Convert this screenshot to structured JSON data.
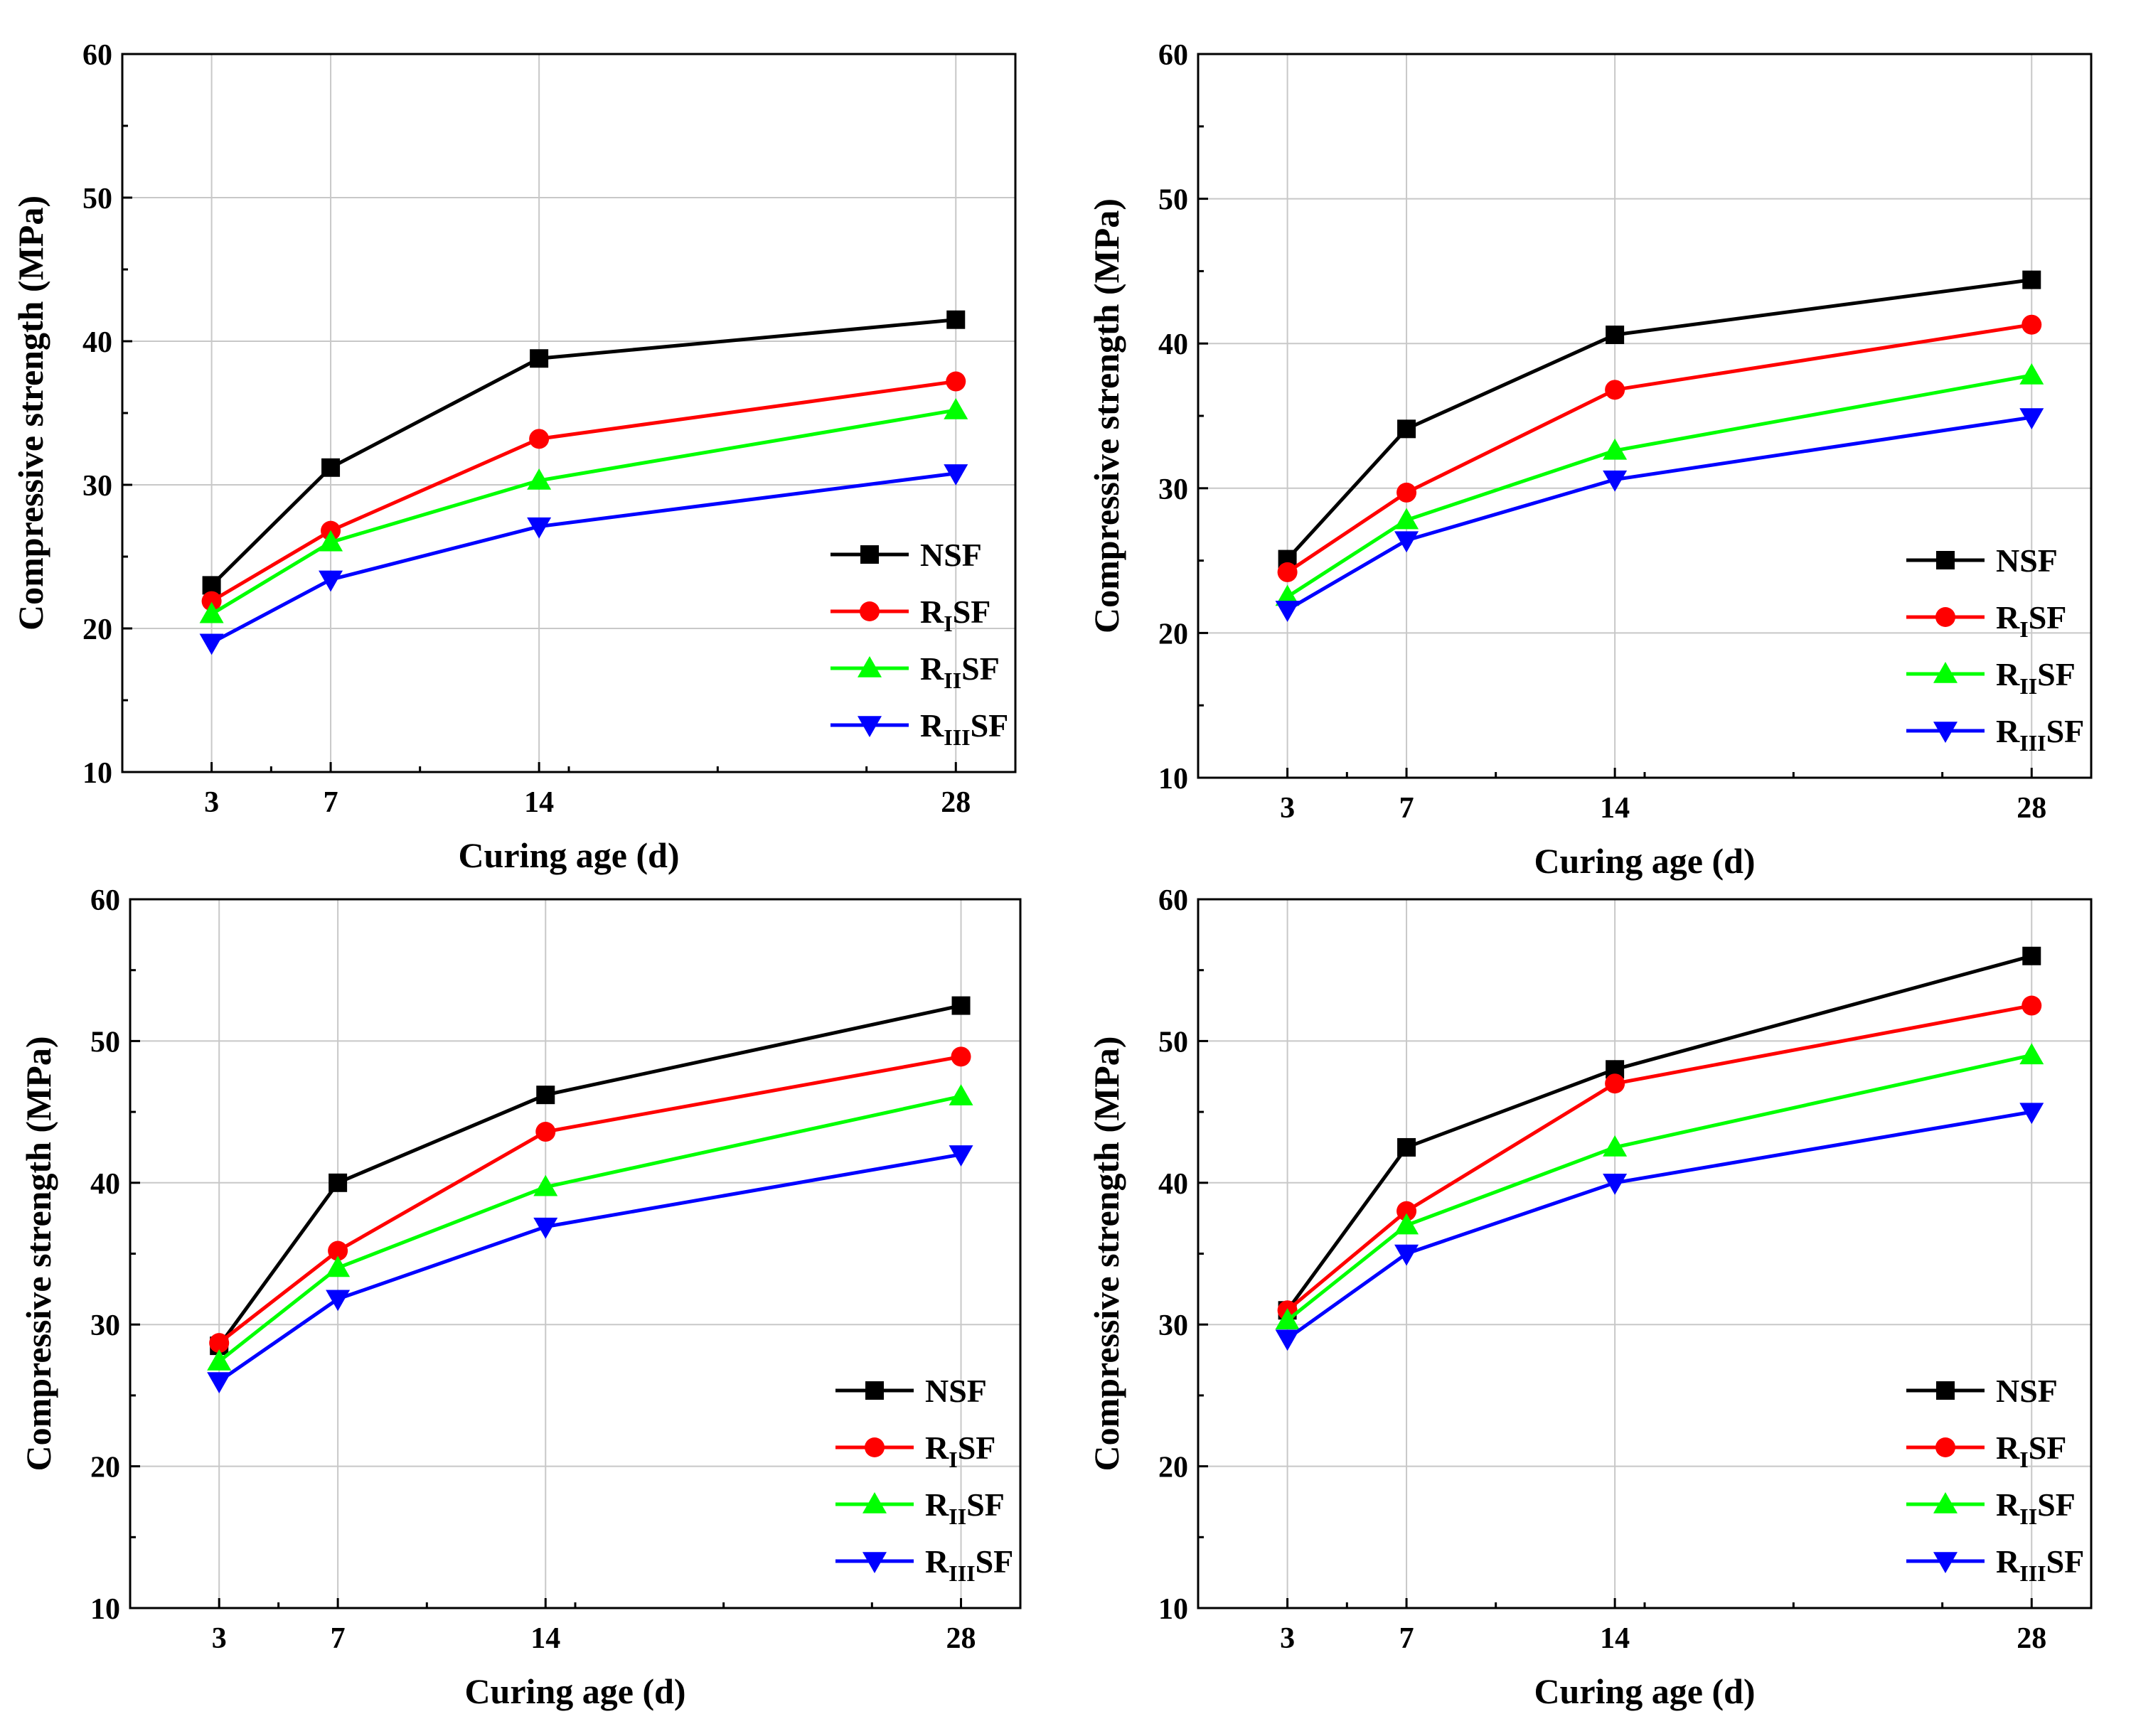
{
  "chart_data": [
    {
      "type": "line",
      "xlabel": "Curing age (d)",
      "ylabel": "Compressive strength (MPa)",
      "x": [
        3,
        7,
        14,
        28
      ],
      "xticks": [
        "3",
        "7",
        "14",
        "28"
      ],
      "xlim": [
        0,
        30
      ],
      "ylim": [
        10,
        60
      ],
      "yticks": [
        "10",
        "20",
        "30",
        "40",
        "50",
        "60"
      ],
      "grid": true,
      "legend": "bottom-right",
      "series": [
        {
          "name": "NSF",
          "prefix": "NSF",
          "sub": "",
          "suffix": "",
          "marker": "square",
          "color": "#000000",
          "values": [
            23.0,
            31.2,
            38.8,
            41.5
          ]
        },
        {
          "name": "RISF",
          "prefix": "R",
          "sub": "I",
          "suffix": "SF",
          "marker": "circle",
          "color": "#ff0000",
          "values": [
            21.9,
            26.8,
            33.2,
            37.2
          ]
        },
        {
          "name": "RIISF",
          "prefix": "R",
          "sub": "II",
          "suffix": "SF",
          "marker": "triangle-up",
          "color": "#00ff00",
          "values": [
            21.0,
            26.0,
            30.3,
            35.2
          ]
        },
        {
          "name": "RIIISF",
          "prefix": "R",
          "sub": "III",
          "suffix": "SF",
          "marker": "triangle-down",
          "color": "#0000ff",
          "values": [
            19.0,
            23.4,
            27.1,
            30.8
          ]
        }
      ]
    },
    {
      "type": "line",
      "xlabel": "Curing age (d)",
      "ylabel": "Compressive strength (MPa)",
      "x": [
        3,
        7,
        14,
        28
      ],
      "xticks": [
        "3",
        "7",
        "14",
        "28"
      ],
      "xlim": [
        0,
        30
      ],
      "ylim": [
        10,
        60
      ],
      "yticks": [
        "10",
        "20",
        "30",
        "40",
        "50",
        "60"
      ],
      "grid": true,
      "legend": "bottom-right",
      "series": [
        {
          "name": "NSF",
          "prefix": "NSF",
          "sub": "",
          "suffix": "",
          "marker": "square",
          "color": "#000000",
          "values": [
            25.1,
            34.1,
            40.6,
            44.4
          ]
        },
        {
          "name": "RISF",
          "prefix": "R",
          "sub": "I",
          "suffix": "SF",
          "marker": "circle",
          "color": "#ff0000",
          "values": [
            24.2,
            29.7,
            36.8,
            41.3
          ]
        },
        {
          "name": "RIISF",
          "prefix": "R",
          "sub": "II",
          "suffix": "SF",
          "marker": "triangle-up",
          "color": "#00ff00",
          "values": [
            22.5,
            27.8,
            32.6,
            37.8
          ]
        },
        {
          "name": "RIIISF",
          "prefix": "R",
          "sub": "III",
          "suffix": "SF",
          "marker": "triangle-down",
          "color": "#0000ff",
          "values": [
            21.6,
            26.4,
            30.6,
            34.9
          ]
        }
      ]
    },
    {
      "type": "line",
      "xlabel": "Curing age (d)",
      "ylabel": "Compressive strength (MPa)",
      "x": [
        3,
        7,
        14,
        28
      ],
      "xticks": [
        "3",
        "7",
        "14",
        "28"
      ],
      "xlim": [
        0,
        30
      ],
      "ylim": [
        10,
        60
      ],
      "yticks": [
        "10",
        "20",
        "30",
        "40",
        "50",
        "60"
      ],
      "grid": true,
      "legend": "bottom-right",
      "series": [
        {
          "name": "NSF",
          "prefix": "NSF",
          "sub": "",
          "suffix": "",
          "marker": "square",
          "color": "#000000",
          "values": [
            28.5,
            40.0,
            46.2,
            52.5
          ]
        },
        {
          "name": "RISF",
          "prefix": "R",
          "sub": "I",
          "suffix": "SF",
          "marker": "circle",
          "color": "#ff0000",
          "values": [
            28.7,
            35.2,
            43.6,
            48.9
          ]
        },
        {
          "name": "RIISF",
          "prefix": "R",
          "sub": "II",
          "suffix": "SF",
          "marker": "triangle-up",
          "color": "#00ff00",
          "values": [
            27.4,
            34.0,
            39.7,
            46.1
          ]
        },
        {
          "name": "RIIISF",
          "prefix": "R",
          "sub": "III",
          "suffix": "SF",
          "marker": "triangle-down",
          "color": "#0000ff",
          "values": [
            26.0,
            31.8,
            36.9,
            42.0
          ]
        }
      ]
    },
    {
      "type": "line",
      "xlabel": "Curing age (d)",
      "ylabel": "Compressive strength (MPa)",
      "x": [
        3,
        7,
        14,
        28
      ],
      "xticks": [
        "3",
        "7",
        "14",
        "28"
      ],
      "xlim": [
        0,
        30
      ],
      "ylim": [
        10,
        60
      ],
      "yticks": [
        "10",
        "20",
        "30",
        "40",
        "50",
        "60"
      ],
      "grid": true,
      "legend": "bottom-right",
      "series": [
        {
          "name": "NSF",
          "prefix": "NSF",
          "sub": "",
          "suffix": "",
          "marker": "square",
          "color": "#000000",
          "values": [
            31.0,
            42.5,
            48.0,
            56.0
          ]
        },
        {
          "name": "RISF",
          "prefix": "R",
          "sub": "I",
          "suffix": "SF",
          "marker": "circle",
          "color": "#ff0000",
          "values": [
            31.0,
            38.0,
            47.0,
            52.5
          ]
        },
        {
          "name": "RIISF",
          "prefix": "R",
          "sub": "II",
          "suffix": "SF",
          "marker": "triangle-up",
          "color": "#00ff00",
          "values": [
            30.3,
            37.0,
            42.5,
            49.0
          ]
        },
        {
          "name": "RIIISF",
          "prefix": "R",
          "sub": "III",
          "suffix": "SF",
          "marker": "triangle-down",
          "color": "#0000ff",
          "values": [
            29.0,
            35.0,
            40.0,
            45.0
          ]
        }
      ]
    }
  ]
}
